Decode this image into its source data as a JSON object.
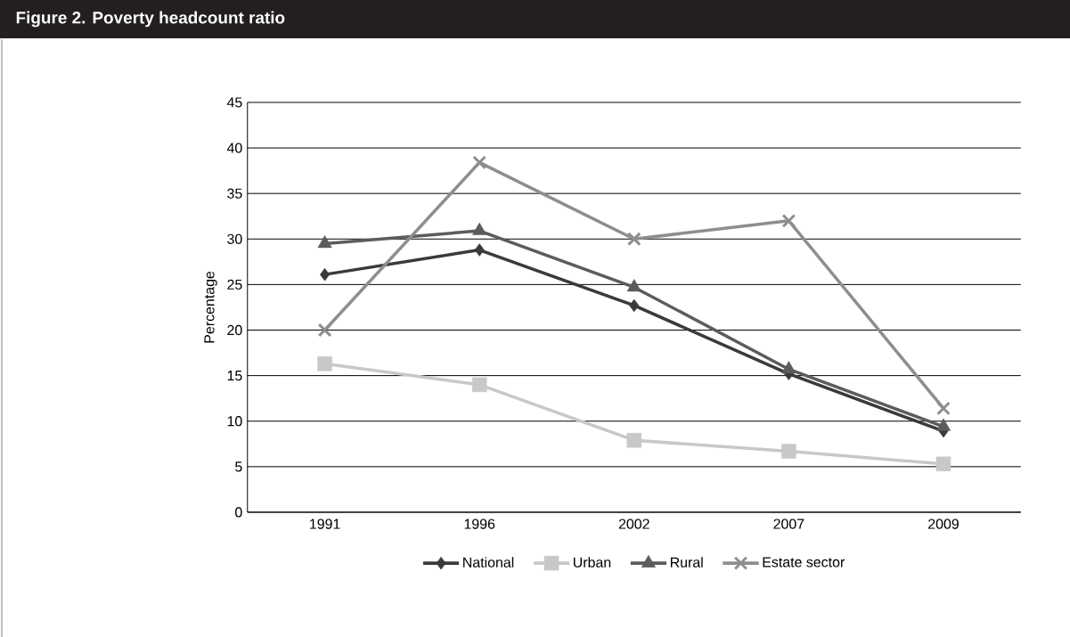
{
  "chart_data": {
    "type": "line",
    "title": "Figure 2.  Poverty headcount ratio",
    "ylabel": "Percentage",
    "categories": [
      "1991",
      "1996",
      "2002",
      "2007",
      "2009"
    ],
    "series": [
      {
        "name": "National",
        "color": "#3a3a3a",
        "marker": "diamond",
        "values": [
          26.1,
          28.8,
          22.7,
          15.2,
          8.9
        ]
      },
      {
        "name": "Urban",
        "color": "#c8c8c8",
        "marker": "square",
        "values": [
          16.3,
          14.0,
          7.9,
          6.7,
          5.3
        ]
      },
      {
        "name": "Rural",
        "color": "#5c5c5c",
        "marker": "triangle",
        "values": [
          29.5,
          30.9,
          24.7,
          15.7,
          9.4
        ]
      },
      {
        "name": "Estate sector",
        "color": "#8e8e8e",
        "marker": "cross",
        "values": [
          20.0,
          38.4,
          30.0,
          32.0,
          11.4
        ]
      }
    ],
    "ylim": [
      0,
      45
    ],
    "yticks": [
      0,
      5,
      10,
      15,
      20,
      25,
      30,
      35,
      40,
      45
    ],
    "grid": "y",
    "legend": "bottom",
    "line_style": "solid"
  }
}
